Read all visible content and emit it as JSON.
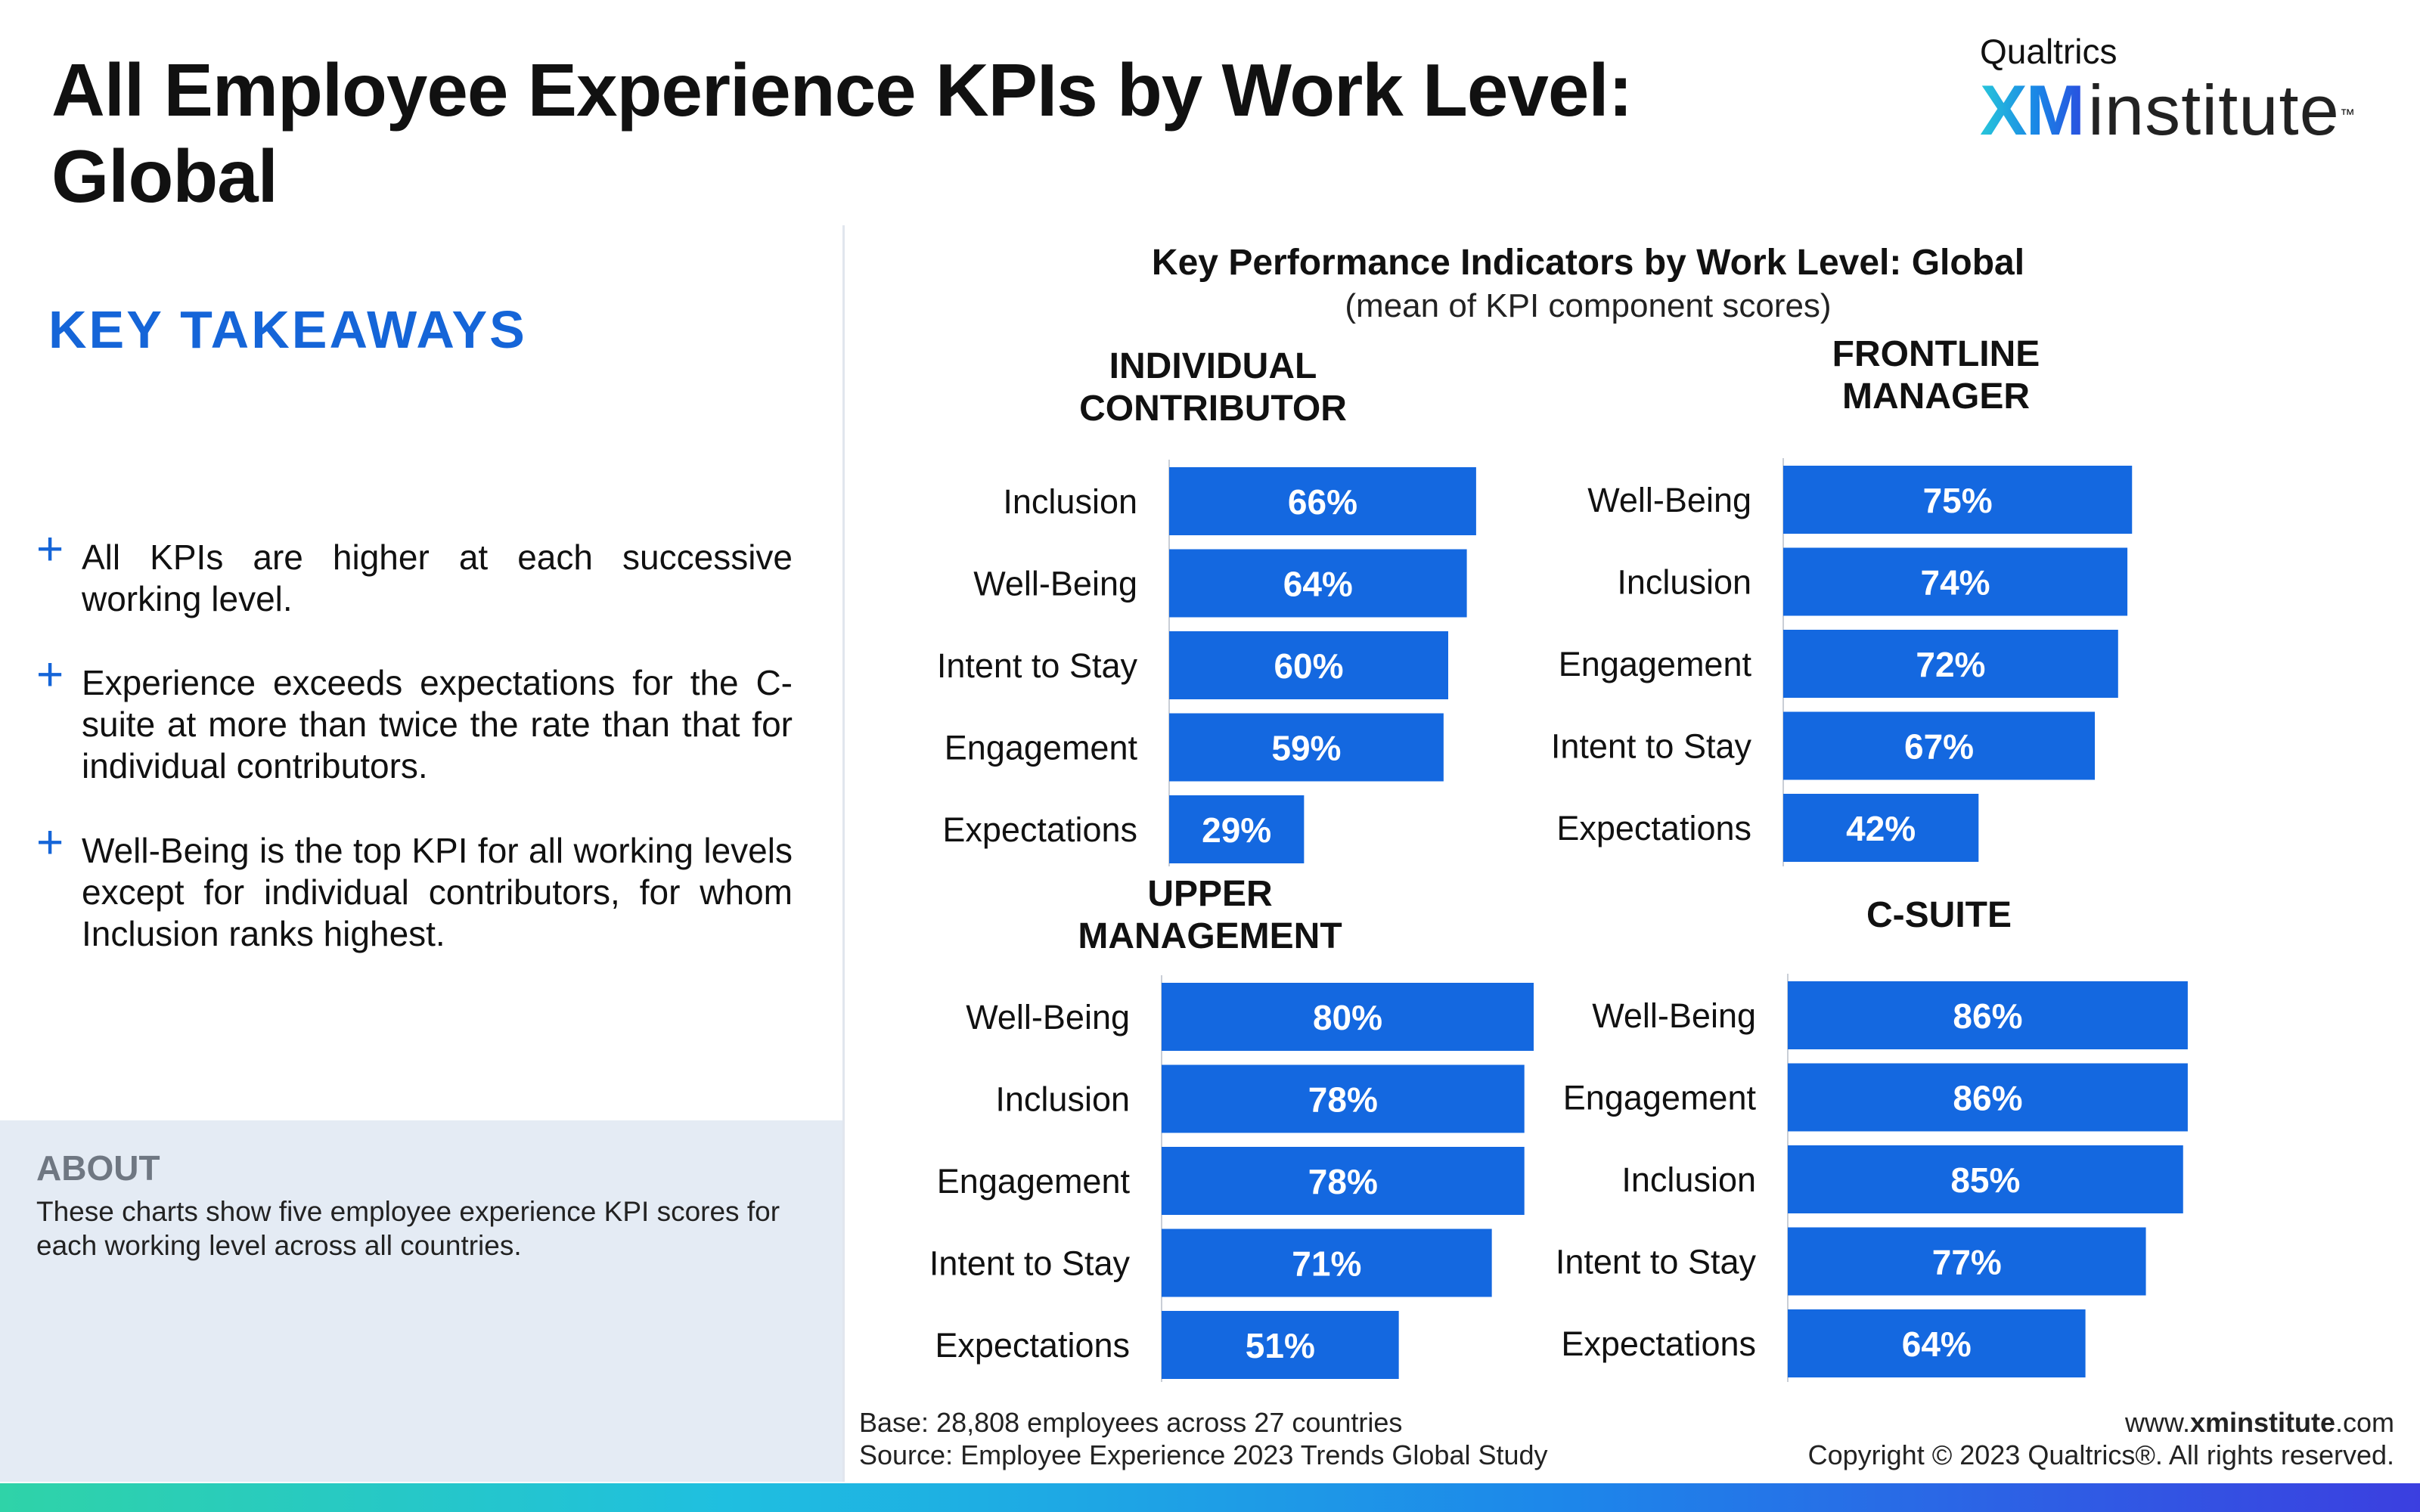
{
  "title_lines": [
    "All Employee Experience KPIs by Work Level:",
    "Global"
  ],
  "logo": {
    "top": "Qualtrics",
    "xm": "XM",
    "institute": "institute",
    "tm": "™"
  },
  "takeaways": {
    "heading": "KEY TAKEAWAYS",
    "bullet_symbol": "+",
    "items": [
      "All KPIs are higher at each successive working level.",
      "Experience exceeds expectations for the C-suite at more than twice the rate than that for individual contributors.",
      "Well-Being is the top KPI for all working levels except for individual contributors, for whom Inclusion ranks highest."
    ]
  },
  "about": {
    "heading": "ABOUT",
    "text": "These charts show five employee experience KPI scores for each working level across all countries."
  },
  "chart_header": {
    "title": "Key Performance Indicators by Work Level: Global",
    "subtitle": "(mean of KPI component scores)"
  },
  "footer": {
    "base": "Base: 28,808 employees across 27 countries",
    "source": "Source: Employee Experience 2023 Trends Global Study",
    "url_prefix": "www.",
    "url_bold": "xminstitute",
    "url_suffix": ".com",
    "copyright": "Copyright © 2023 Qualtrics®. All rights reserved."
  },
  "colors": {
    "bar": "#1468e0",
    "accent": "#1565d8",
    "about_bg": "#e4ebf4"
  },
  "chart_data": [
    {
      "type": "bar",
      "orientation": "horizontal",
      "title_lines": [
        "INDIVIDUAL",
        "CONTRIBUTOR"
      ],
      "categories": [
        "Inclusion",
        "Well-Being",
        "Intent to Stay",
        "Engagement",
        "Expectations"
      ],
      "values": [
        66,
        64,
        60,
        59,
        29
      ],
      "value_suffix": "%"
    },
    {
      "type": "bar",
      "orientation": "horizontal",
      "title_lines": [
        "FRONTLINE",
        "MANAGER"
      ],
      "categories": [
        "Well-Being",
        "Inclusion",
        "Engagement",
        "Intent to Stay",
        "Expectations"
      ],
      "values": [
        75,
        74,
        72,
        67,
        42
      ],
      "value_suffix": "%"
    },
    {
      "type": "bar",
      "orientation": "horizontal",
      "title_lines": [
        "UPPER",
        "MANAGEMENT"
      ],
      "categories": [
        "Well-Being",
        "Inclusion",
        "Engagement",
        "Intent to Stay",
        "Expectations"
      ],
      "values": [
        80,
        78,
        78,
        71,
        51
      ],
      "value_suffix": "%"
    },
    {
      "type": "bar",
      "orientation": "horizontal",
      "title_lines": [
        "C-SUITE"
      ],
      "categories": [
        "Well-Being",
        "Engagement",
        "Inclusion",
        "Intent to Stay",
        "Expectations"
      ],
      "values": [
        86,
        86,
        85,
        77,
        64
      ],
      "value_suffix": "%"
    }
  ]
}
